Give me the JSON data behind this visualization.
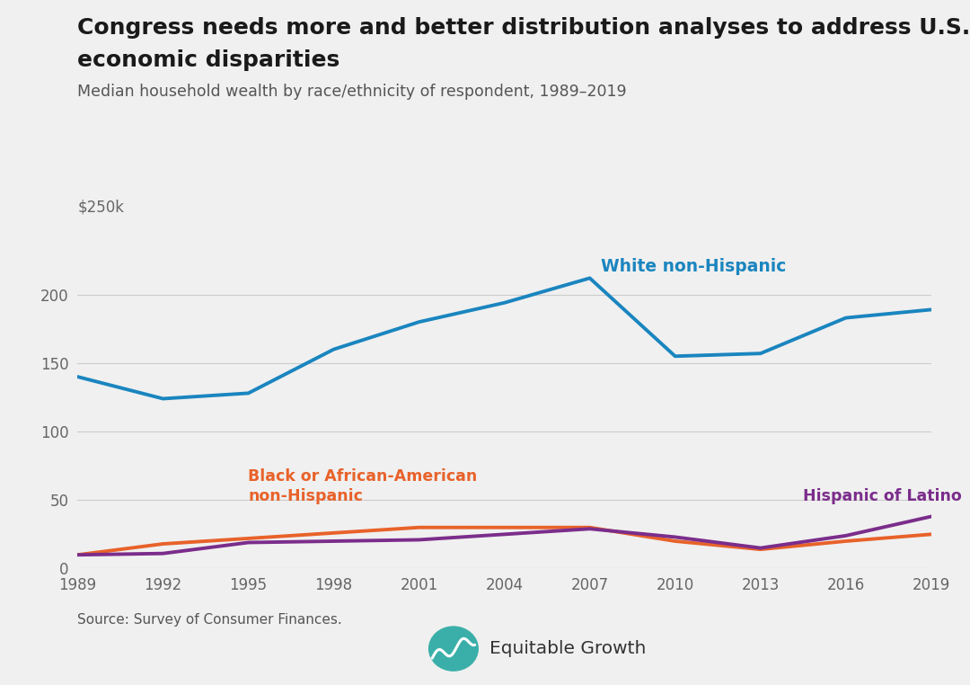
{
  "title_line1": "Congress needs more and better distribution analyses to address U.S.",
  "title_line2": "economic disparities",
  "subtitle": "Median household wealth by race/ethnicity of respondent, 1989–2019",
  "source": "Source: Survey of Consumer Finances.",
  "years": [
    1989,
    1992,
    1995,
    1998,
    2001,
    2004,
    2007,
    2010,
    2013,
    2016,
    2019
  ],
  "white": [
    140,
    124,
    128,
    160,
    180,
    194,
    212,
    155,
    157,
    183,
    189
  ],
  "black": [
    10,
    18,
    22,
    26,
    30,
    30,
    30,
    20,
    14,
    20,
    25
  ],
  "hispanic": [
    10,
    11,
    19,
    20,
    21,
    25,
    29,
    23,
    15,
    24,
    38
  ],
  "white_color": "#1a85bf",
  "black_color": "#e8622a",
  "hispanic_color": "#7b2d8b",
  "bg_color": "#f0f0f0",
  "title_color": "#1a1a1a",
  "subtitle_color": "#555555",
  "grid_color": "#cccccc",
  "tick_color": "#666666",
  "white_label": "White non-Hispanic",
  "black_label": "Black or African-American\nnon-Hispanic",
  "hispanic_label": "Hispanic of Latino",
  "ylim": [
    0,
    250
  ],
  "yticks": [
    0,
    50,
    100,
    150,
    200
  ],
  "ytick_labels": [
    "0",
    "50",
    "100",
    "150",
    "200"
  ],
  "y250_label": "$250k",
  "line_width": 2.8
}
